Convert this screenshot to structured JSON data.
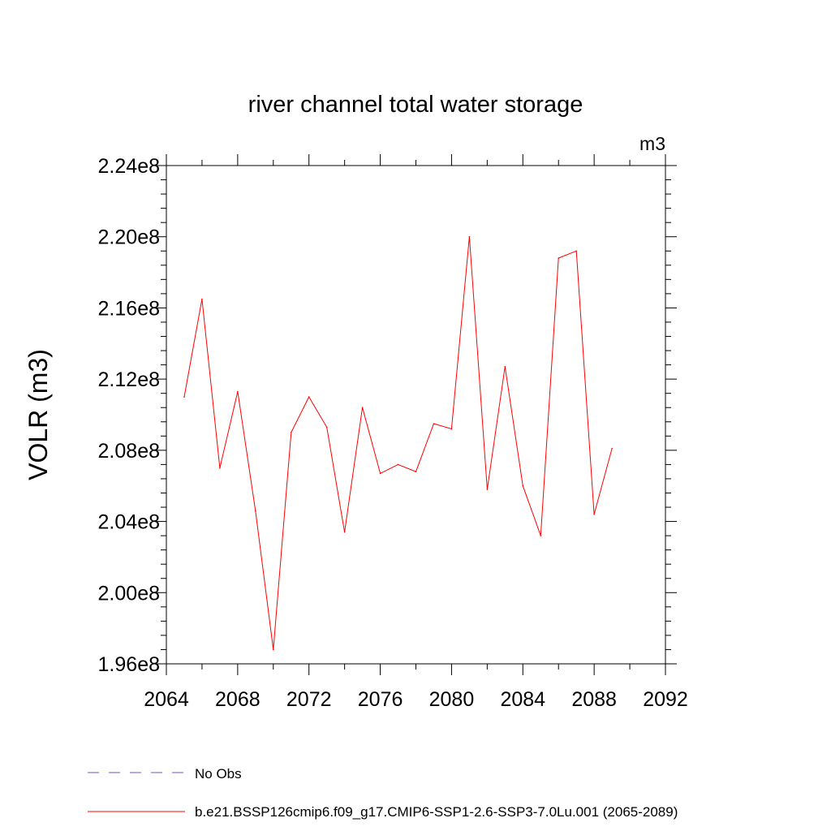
{
  "chart_data": {
    "type": "line",
    "title": "river channel total water storage",
    "units_label": "m3",
    "ylabel": "VOLR  (m3)",
    "xlabel": "",
    "xlim": [
      2064,
      2092
    ],
    "ylim": [
      196000000.0,
      224000000.0
    ],
    "x_ticks": [
      "2064",
      "2068",
      "2072",
      "2076",
      "2080",
      "2084",
      "2088",
      "2092"
    ],
    "y_ticks": [
      "1.96e8",
      "2.00e8",
      "2.04e8",
      "2.08e8",
      "2.12e8",
      "2.16e8",
      "2.20e8",
      "2.24e8"
    ],
    "grid": false,
    "legend_position": "bottom",
    "series": [
      {
        "name": "b.e21.BSSP126cmip6.f09_g17.CMIP6-SSP1-2.6-SSP3-7.0Lu.001 (2065-2089)",
        "color": "#ff0000",
        "line_style": "solid",
        "x": [
          2065,
          2066,
          2067,
          2068,
          2069,
          2070,
          2071,
          2072,
          2073,
          2074,
          2075,
          2076,
          2077,
          2078,
          2079,
          2080,
          2081,
          2082,
          2083,
          2084,
          2085,
          2086,
          2087,
          2088,
          2089
        ],
        "values": [
          211000000.0,
          216500000.0,
          207000000.0,
          211300000.0,
          204600000.0,
          196800000.0,
          209000000.0,
          211000000.0,
          209300000.0,
          203400000.0,
          210400000.0,
          206700000.0,
          207200000.0,
          206800000.0,
          209500000.0,
          209200000.0,
          220000000.0,
          205800000.0,
          212700000.0,
          206000000.0,
          203200000.0,
          218800000.0,
          219200000.0,
          204400000.0,
          208100000.0
        ]
      }
    ],
    "legend": [
      {
        "label": "No Obs",
        "color": "#6a5acd",
        "line_style": "dashed"
      },
      {
        "label": "b.e21.BSSP126cmip6.f09_g17.CMIP6-SSP1-2.6-SSP3-7.0Lu.001 (2065-2089)",
        "color": "#ff0000",
        "line_style": "solid"
      }
    ]
  }
}
